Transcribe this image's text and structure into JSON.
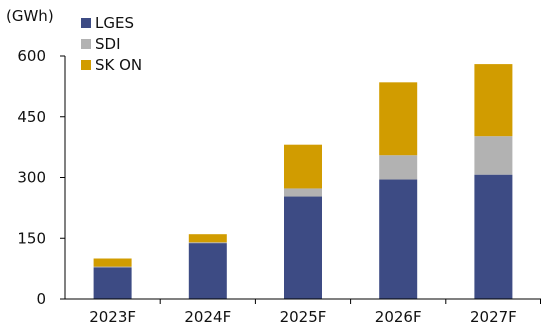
{
  "chart_data": {
    "type": "bar",
    "stacked": true,
    "unit_label": "(GWh)",
    "categories": [
      "2023F",
      "2024F",
      "2025F",
      "2026F",
      "2027F"
    ],
    "series": [
      {
        "name": "LGES",
        "color": "#3d4b84",
        "values": [
          78,
          138,
          253,
          295,
          307
        ]
      },
      {
        "name": "SDI",
        "color": "#b2b2b2",
        "values": [
          2,
          2,
          20,
          60,
          95
        ]
      },
      {
        "name": "SK ON",
        "color": "#d19c00",
        "values": [
          20,
          20,
          108,
          180,
          178
        ]
      }
    ],
    "yticks": [
      0,
      150,
      300,
      450,
      600
    ],
    "ylim": [
      0,
      600
    ],
    "grid": false,
    "legend_position": "top-left"
  }
}
